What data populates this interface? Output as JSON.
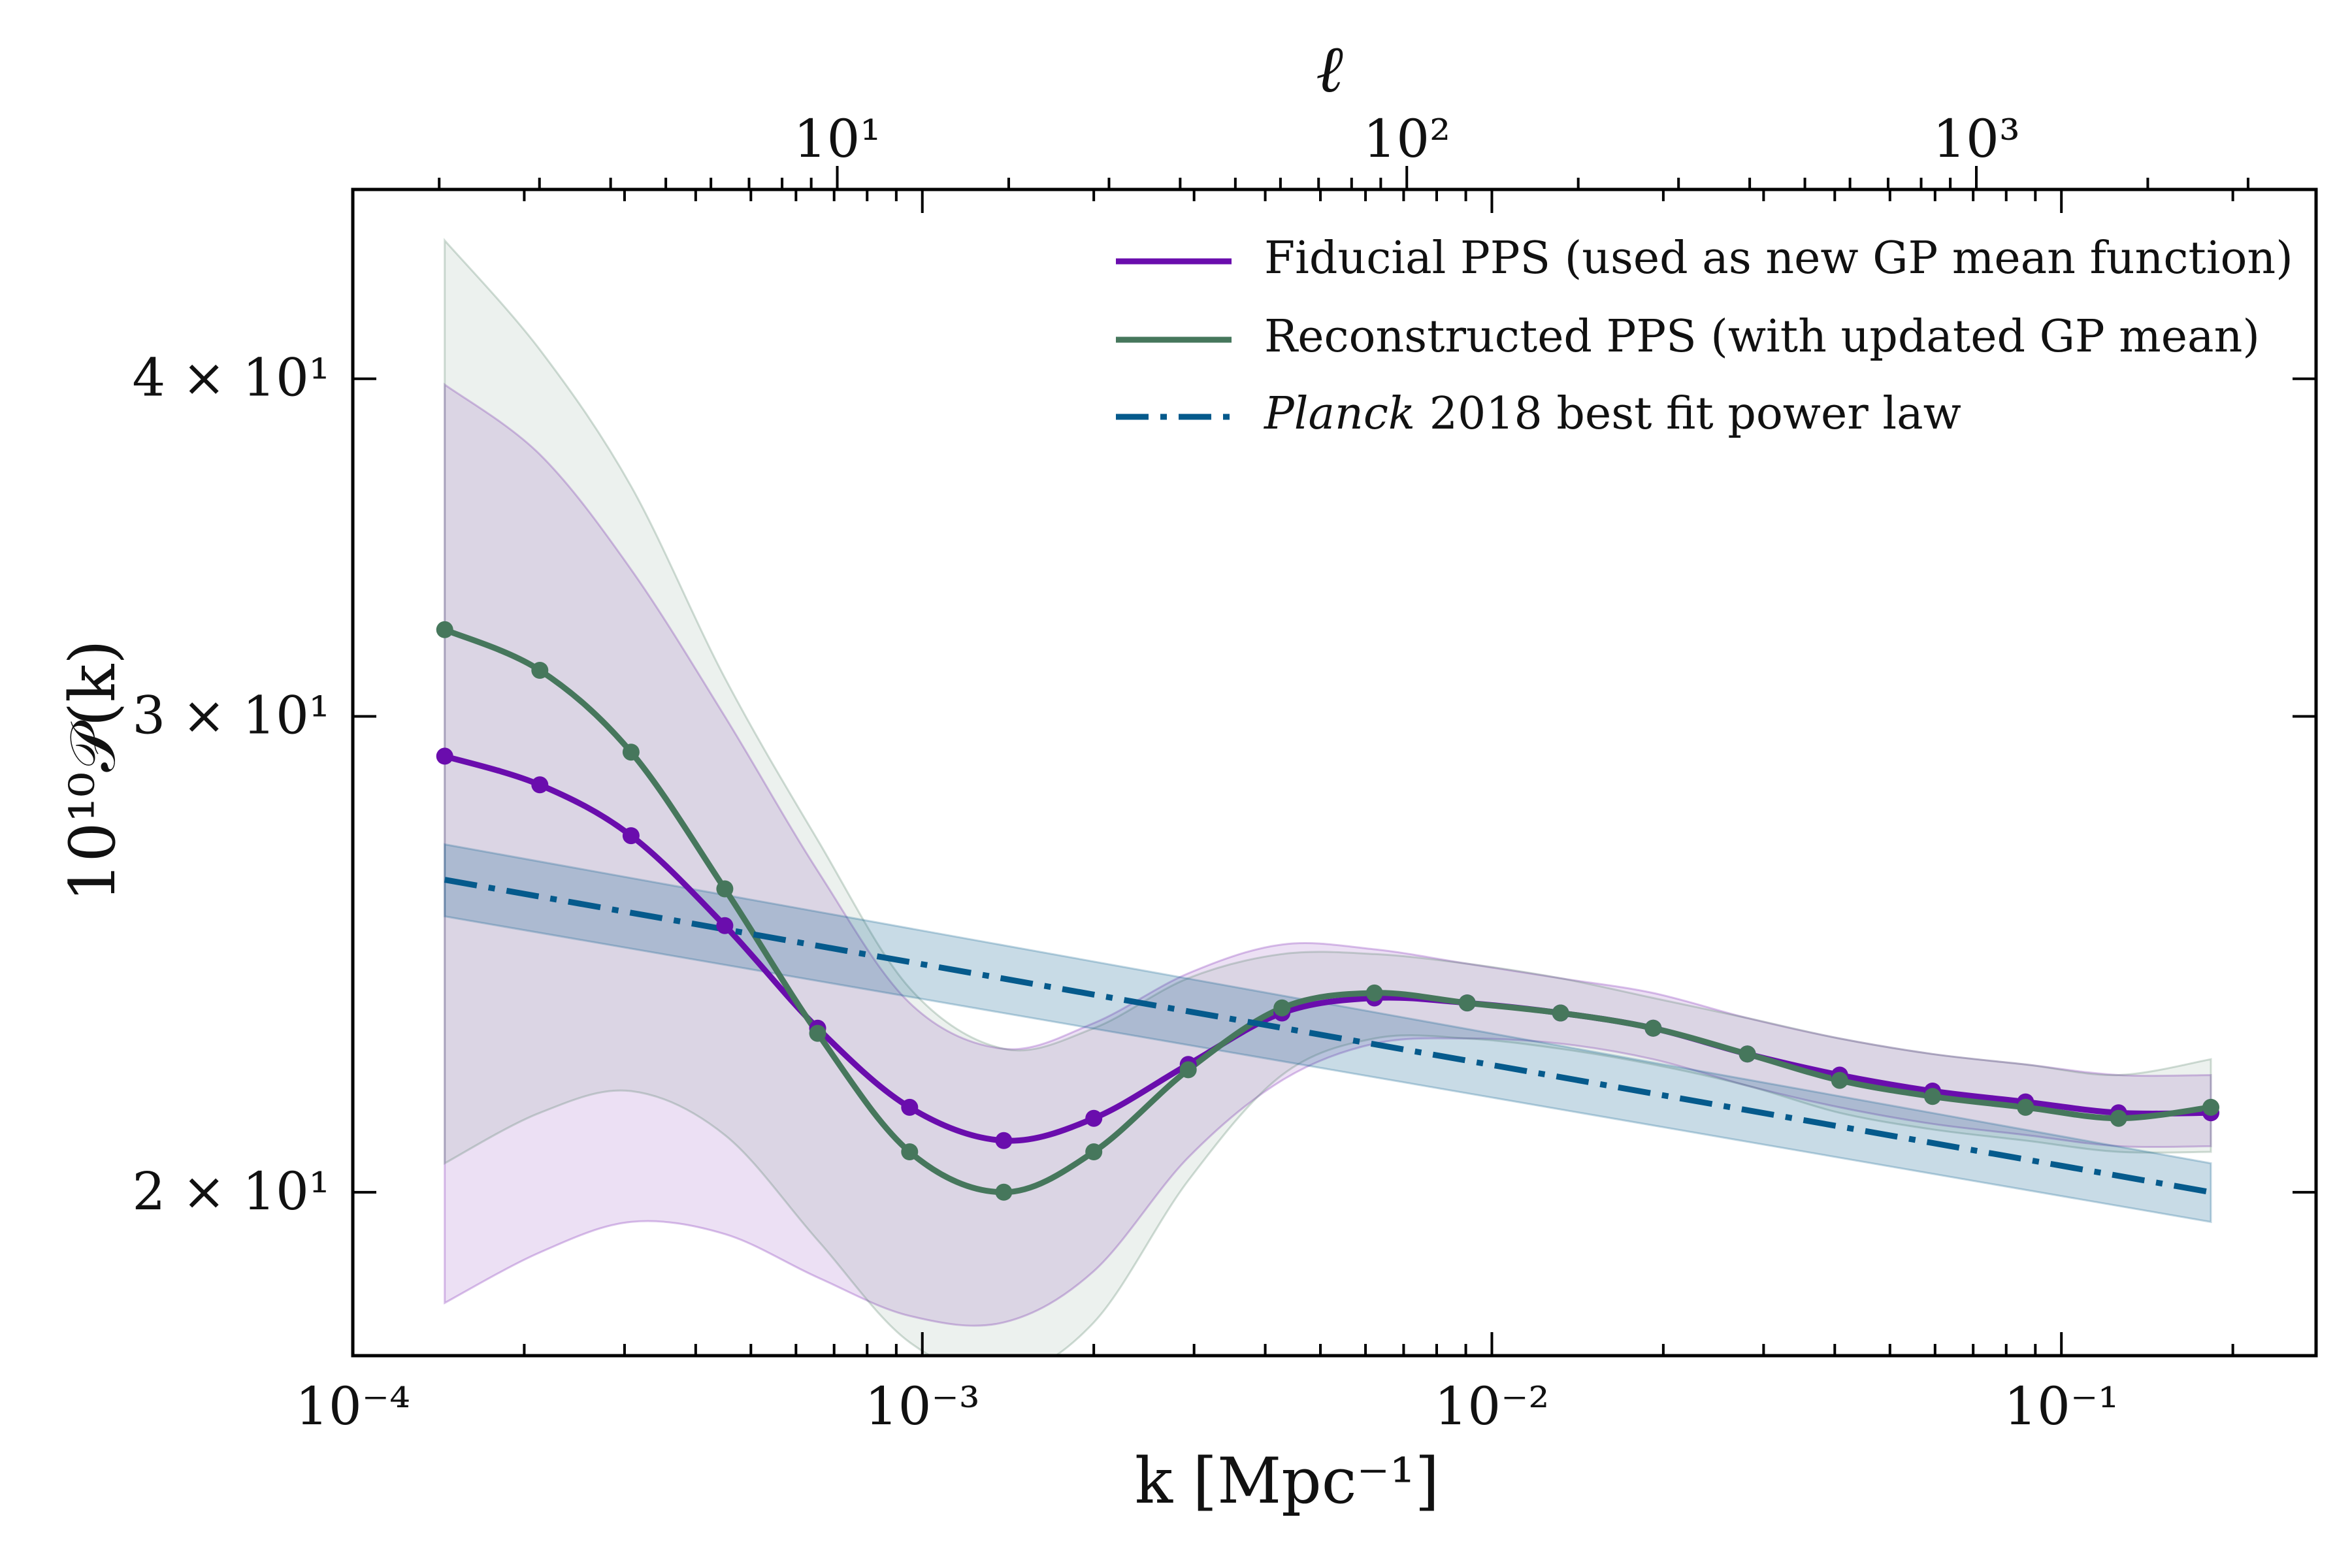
{
  "chart_data": {
    "type": "line",
    "xlabel": "k [Mpc⁻¹]",
    "ylabel": "10¹⁰𝒫(k)",
    "top_xlabel": "ℓ",
    "x_scale": "log",
    "y_scale": "log",
    "xlim": [
      0.0001,
      0.28
    ],
    "ylim": [
      17.4,
      47.0
    ],
    "x_ticks": [
      {
        "value": 0.0001,
        "label": "10⁻⁴"
      },
      {
        "value": 0.001,
        "label": "10⁻³"
      },
      {
        "value": 0.01,
        "label": "10⁻²"
      },
      {
        "value": 0.1,
        "label": "10⁻¹"
      }
    ],
    "y_ticks": [
      {
        "value": 20,
        "label": "2 × 10¹"
      },
      {
        "value": 30,
        "label": "3 × 10¹"
      },
      {
        "value": 40,
        "label": "4 × 10¹"
      }
    ],
    "top_ticks": [
      {
        "k": 0.000709,
        "label": "10¹"
      },
      {
        "k": 0.00709,
        "label": "10²"
      },
      {
        "k": 0.0709,
        "label": "10³"
      }
    ],
    "legend_position": "top-right",
    "series": [
      {
        "name": "Fiducial PPS (used as new GP mean function)",
        "color": "#6a0dad",
        "style": "solid",
        "k": [
          0.000145,
          0.000213,
          0.000308,
          0.00045,
          0.000655,
          0.00095,
          0.00139,
          0.002,
          0.00293,
          0.00428,
          0.00622,
          0.00905,
          0.0132,
          0.0192,
          0.0281,
          0.0408,
          0.0594,
          0.0865,
          0.126,
          0.183
        ],
        "values": [
          29.0,
          28.3,
          27.1,
          25.1,
          23.0,
          21.5,
          20.9,
          21.3,
          22.3,
          23.3,
          23.6,
          23.5,
          23.3,
          23.0,
          22.5,
          22.1,
          21.8,
          21.6,
          21.4,
          21.4
        ],
        "band_upper": [
          39.8,
          37.5,
          34.0,
          30.0,
          26.3,
          23.5,
          22.6,
          23.1,
          24.1,
          24.7,
          24.6,
          24.3,
          24.0,
          23.7,
          23.2,
          22.8,
          22.5,
          22.3,
          22.1,
          22.1
        ],
        "band_lower": [
          18.2,
          19.0,
          19.5,
          19.3,
          18.6,
          18.0,
          17.9,
          18.7,
          20.6,
          22.0,
          22.7,
          22.8,
          22.7,
          22.4,
          21.9,
          21.5,
          21.2,
          21.0,
          20.8,
          20.8
        ]
      },
      {
        "name": "Reconstructed PPS (with updated GP mean)",
        "color": "#46775c",
        "style": "solid",
        "k": [
          0.000145,
          0.000213,
          0.000308,
          0.00045,
          0.000655,
          0.00095,
          0.00139,
          0.002,
          0.00293,
          0.00428,
          0.00622,
          0.00905,
          0.0132,
          0.0192,
          0.0281,
          0.0408,
          0.0594,
          0.0865,
          0.126,
          0.183
        ],
        "values": [
          32.3,
          31.2,
          29.1,
          25.9,
          22.9,
          20.7,
          20.0,
          20.7,
          22.2,
          23.4,
          23.7,
          23.5,
          23.3,
          23.0,
          22.5,
          22.0,
          21.7,
          21.5,
          21.3,
          21.5
        ],
        "band_upper": [
          45.0,
          41.0,
          36.5,
          31.0,
          27.0,
          23.8,
          22.6,
          23.0,
          24.0,
          24.5,
          24.5,
          24.3,
          24.0,
          23.6,
          23.2,
          22.8,
          22.5,
          22.3,
          22.1,
          22.4
        ],
        "band_lower": [
          20.5,
          21.4,
          21.8,
          21.0,
          19.2,
          17.6,
          17.1,
          17.9,
          20.2,
          22.1,
          22.8,
          22.8,
          22.6,
          22.3,
          21.9,
          21.4,
          21.1,
          20.9,
          20.7,
          20.7
        ]
      },
      {
        "name": "Planck 2018 best fit power law",
        "name_italic": "Planck",
        "name_rest": " 2018 best fit power law",
        "color": "#055a8c",
        "style": "dashdot",
        "k": [
          0.000145,
          0.183
        ],
        "values": [
          26.1,
          20.0
        ],
        "band_upper": [
          26.9,
          20.5
        ],
        "band_lower": [
          25.3,
          19.5
        ]
      }
    ]
  }
}
